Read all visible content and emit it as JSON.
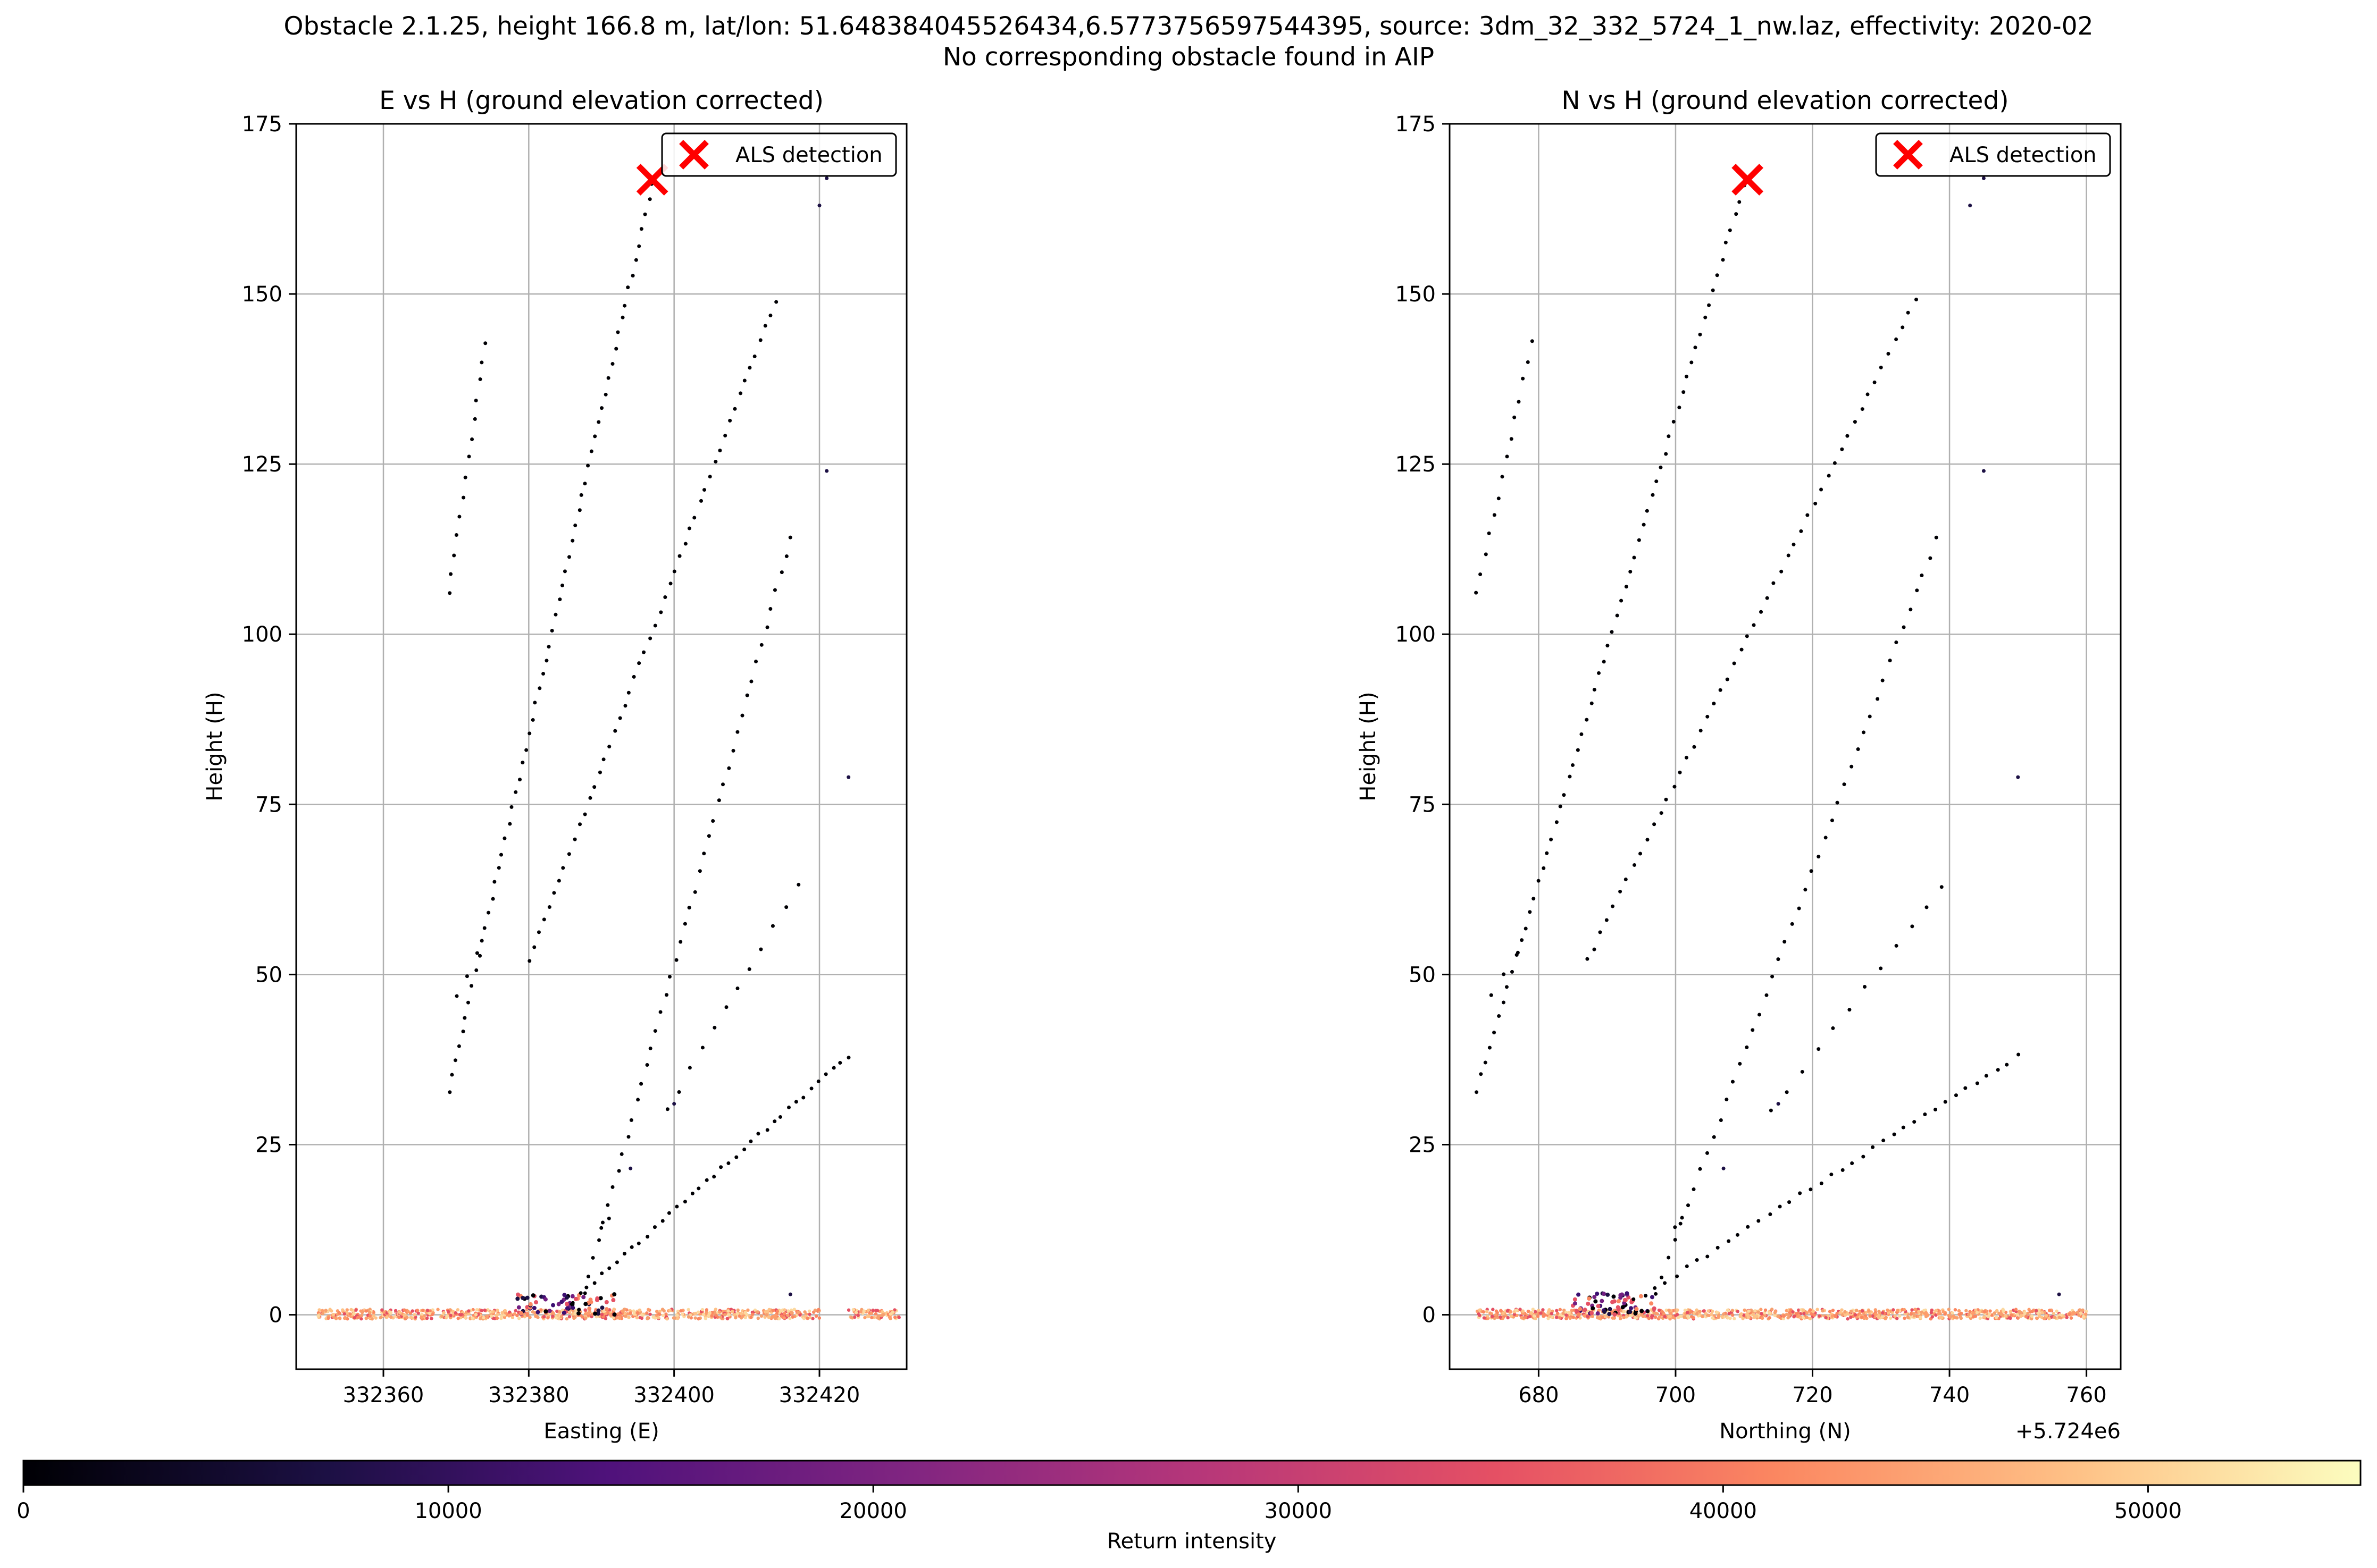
{
  "suptitle": {
    "line1": "Obstacle 2.1.25, height 166.8 m, lat/lon: 51.648384045526434,6.5773756597544395, source: 3dm_32_332_5724_1_nw.laz, effectivity: 2020-02",
    "line2": "No corresponding obstacle found in AIP"
  },
  "colorbar": {
    "label": "Return intensity",
    "range": [
      0,
      55000
    ],
    "ticks": [
      "0",
      "10000",
      "20000",
      "30000",
      "40000",
      "50000"
    ],
    "tick_values": [
      0,
      10000,
      20000,
      30000,
      40000,
      50000
    ],
    "colormap": "magma"
  },
  "chart_data": [
    {
      "type": "scatter",
      "title": "E vs H (ground elevation corrected)",
      "xlabel": "Easting (E)",
      "ylabel": "Height (H)",
      "xlim": [
        332348,
        332432
      ],
      "ylim": [
        -8,
        175
      ],
      "xticks": [
        332360,
        332380,
        332400,
        332420
      ],
      "xtick_labels": [
        "332360",
        "332380",
        "332400",
        "332420"
      ],
      "yticks": [
        0,
        25,
        50,
        75,
        100,
        125,
        150,
        175
      ],
      "ytick_labels": [
        "0",
        "25",
        "50",
        "75",
        "100",
        "125",
        "150",
        "175"
      ],
      "grid": true,
      "legend": {
        "placement": "top-right",
        "entries": [
          "ALS detection"
        ]
      },
      "detection": {
        "x": 332397,
        "y": 166.8,
        "color": "#ff0000"
      },
      "point_series": [
        {
          "x0": 332369,
          "y0": 106,
          "x1": 332374,
          "y1": 143,
          "n": 14
        },
        {
          "x0": 332369,
          "y0": 33,
          "x1": 332397,
          "y1": 166,
          "n": 62
        },
        {
          "x0": 332370,
          "y0": 47,
          "x1": 332373,
          "y1": 53,
          "n": 3
        },
        {
          "x0": 332380,
          "y0": 52,
          "x1": 332414,
          "y1": 149,
          "n": 50
        },
        {
          "x0": 332387,
          "y0": 0.5,
          "x1": 332416,
          "y1": 114,
          "n": 45
        },
        {
          "x0": 332386,
          "y0": 2,
          "x1": 332424,
          "y1": 38,
          "n": 38
        },
        {
          "x0": 332399,
          "y0": 30,
          "x1": 332417,
          "y1": 63,
          "n": 12
        },
        {
          "x0": 332390,
          "y0": 13,
          "x1": 332391,
          "y1": 14,
          "n": 2
        }
      ],
      "single_points": [
        {
          "x": 332394,
          "y": 21.5
        },
        {
          "x": 332400,
          "y": 31
        },
        {
          "x": 332420,
          "y": 163
        },
        {
          "x": 332421,
          "y": 167
        },
        {
          "x": 332421,
          "y": 124
        },
        {
          "x": 332424,
          "y": 79
        },
        {
          "x": 332416,
          "y": 3
        }
      ],
      "ground": {
        "x_min": 332351,
        "x_max": 332431,
        "gap": [
          332420,
          332424
        ],
        "cluster_x": [
          332378,
          332392
        ]
      }
    },
    {
      "type": "scatter",
      "title": "N vs H (ground elevation corrected)",
      "xlabel": "Northing (N)",
      "ylabel": "Height (H)",
      "offset_text": "+5.724e6",
      "xlim": [
        5724667,
        5724765
      ],
      "ylim": [
        -8,
        175
      ],
      "xticks": [
        5724680,
        5724700,
        5724720,
        5724740,
        5724760
      ],
      "xtick_labels": [
        "680",
        "700",
        "720",
        "740",
        "760"
      ],
      "yticks": [
        0,
        25,
        50,
        75,
        100,
        125,
        150,
        175
      ],
      "ytick_labels": [
        "0",
        "25",
        "50",
        "75",
        "100",
        "125",
        "150",
        "175"
      ],
      "grid": true,
      "legend": {
        "placement": "top-right",
        "entries": [
          "ALS detection"
        ]
      },
      "detection": {
        "x": 5724710.5,
        "y": 166.8,
        "color": "#ff0000"
      },
      "point_series": [
        {
          "x0": 5724671,
          "y0": 106,
          "x1": 5724679,
          "y1": 143,
          "n": 14
        },
        {
          "x0": 5724671,
          "y0": 33,
          "x1": 5724710,
          "y1": 166,
          "n": 62
        },
        {
          "x0": 5724673,
          "y0": 47,
          "x1": 5724677,
          "y1": 53,
          "n": 3
        },
        {
          "x0": 5724687,
          "y0": 52,
          "x1": 5724735,
          "y1": 149,
          "n": 50
        },
        {
          "x0": 5724696,
          "y0": 0.5,
          "x1": 5724738,
          "y1": 114,
          "n": 45
        },
        {
          "x0": 5724694,
          "y0": 2,
          "x1": 5724750,
          "y1": 38,
          "n": 38
        },
        {
          "x0": 5724714,
          "y0": 30,
          "x1": 5724739,
          "y1": 63,
          "n": 12
        },
        {
          "x0": 5724700,
          "y0": 13,
          "x1": 5724701,
          "y1": 14,
          "n": 2
        }
      ],
      "single_points": [
        {
          "x": 5724707,
          "y": 21.5
        },
        {
          "x": 5724715,
          "y": 31
        },
        {
          "x": 5724743,
          "y": 163
        },
        {
          "x": 5724745,
          "y": 167
        },
        {
          "x": 5724745,
          "y": 124
        },
        {
          "x": 5724750,
          "y": 79
        },
        {
          "x": 5724756,
          "y": 3
        }
      ],
      "ground": {
        "x_min": 5724671,
        "x_max": 5724760,
        "gap": [],
        "cluster_x": [
          5724685,
          5724697
        ]
      }
    }
  ]
}
